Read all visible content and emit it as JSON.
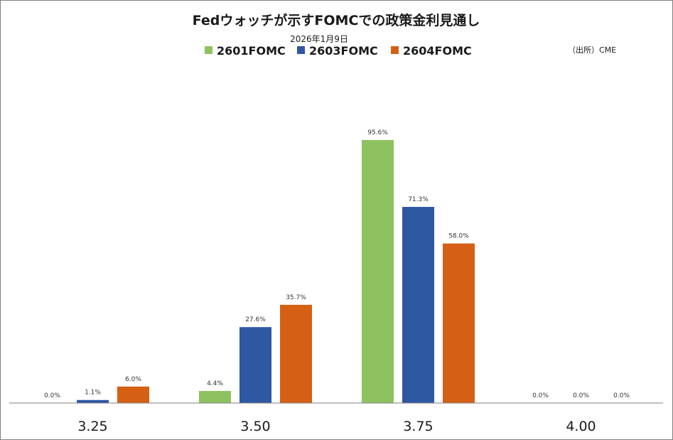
{
  "colors": {
    "series_2601": "#8ec261",
    "series_2603": "#2f58a3",
    "series_2604": "#d56014",
    "axis": "#7f7f7f",
    "frame": "#7f7f7f"
  },
  "source_note": "（出所）CME",
  "chart_data": {
    "type": "bar",
    "title": "Fedウォッチが示すFOMCでの政策金利見通し",
    "subtitle": "2026年1月9日",
    "xlabel": "",
    "ylabel": "",
    "categories": [
      "3.25",
      "3.50",
      "3.75",
      "4.00"
    ],
    "series": [
      {
        "name": "2601FOMC",
        "values": [
          0.0,
          4.4,
          95.6,
          0.0
        ],
        "labels": [
          "0.0%",
          "4.4%",
          "95.6%",
          "0.0%"
        ]
      },
      {
        "name": "2603FOMC",
        "values": [
          1.1,
          27.6,
          71.3,
          0.0
        ],
        "labels": [
          "1.1%",
          "27.6%",
          "71.3%",
          "0.0%"
        ]
      },
      {
        "name": "2604FOMC",
        "values": [
          6.0,
          35.7,
          58.0,
          0.0
        ],
        "labels": [
          "6.0%",
          "35.7%",
          "58.0%",
          "0.0%"
        ]
      }
    ],
    "ylim": [
      0,
      100
    ],
    "grid": false,
    "legend": "top-center"
  }
}
